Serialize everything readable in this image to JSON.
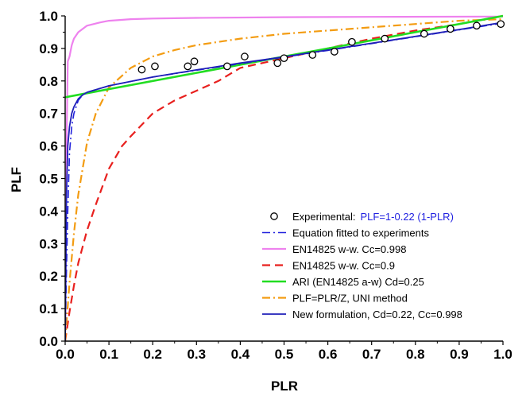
{
  "chart_data": {
    "type": "line",
    "xlabel": "PLR",
    "ylabel": "PLF",
    "xlim": [
      0,
      1
    ],
    "ylim": [
      0,
      1
    ],
    "xticks": [
      "0.0",
      "0.1",
      "0.2",
      "0.3",
      "0.4",
      "0.5",
      "0.6",
      "0.7",
      "0.8",
      "0.9",
      "1.0"
    ],
    "yticks": [
      "0.0",
      "0.1",
      "0.2",
      "0.3",
      "0.4",
      "0.5",
      "0.6",
      "0.7",
      "0.8",
      "0.9",
      "1.0"
    ],
    "grid": false,
    "legend_position": "bottom-right",
    "series": [
      {
        "name": "Experimental:",
        "equation": "PLF=1-0.22 (1-PLR)",
        "equation_color": "#1f1fe0",
        "style": "markers",
        "marker": "open-circle",
        "color": "#000000",
        "points": [
          [
            0.175,
            0.835
          ],
          [
            0.205,
            0.845
          ],
          [
            0.28,
            0.845
          ],
          [
            0.295,
            0.86
          ],
          [
            0.37,
            0.845
          ],
          [
            0.41,
            0.875
          ],
          [
            0.485,
            0.855
          ],
          [
            0.5,
            0.87
          ],
          [
            0.565,
            0.88
          ],
          [
            0.615,
            0.89
          ],
          [
            0.655,
            0.92
          ],
          [
            0.73,
            0.93
          ],
          [
            0.82,
            0.945
          ],
          [
            0.88,
            0.96
          ],
          [
            0.94,
            0.97
          ],
          [
            0.995,
            0.975
          ]
        ]
      },
      {
        "name": "Equation fitted to experiments",
        "style": "dash-dot",
        "color": "#2222dd",
        "width": 1.6,
        "points": [
          [
            0.0,
            0.0
          ],
          [
            0.003,
            0.22
          ],
          [
            0.006,
            0.4
          ],
          [
            0.01,
            0.58
          ],
          [
            0.015,
            0.66
          ],
          [
            0.02,
            0.7
          ],
          [
            0.03,
            0.74
          ],
          [
            0.04,
            0.757
          ],
          [
            0.05,
            0.765
          ],
          [
            0.1,
            0.785
          ],
          [
            0.2,
            0.812
          ],
          [
            0.3,
            0.833
          ],
          [
            0.4,
            0.853
          ],
          [
            0.5,
            0.873
          ],
          [
            0.6,
            0.894
          ],
          [
            0.7,
            0.915
          ],
          [
            0.8,
            0.936
          ],
          [
            0.9,
            0.957
          ],
          [
            1.0,
            0.978
          ]
        ]
      },
      {
        "name": "EN14825 w-w. Cc=0.998",
        "style": "solid",
        "color": "#ee82ee",
        "width": 2.2,
        "points": [
          [
            0.0,
            0.0
          ],
          [
            0.003,
            0.6
          ],
          [
            0.006,
            0.86
          ],
          [
            0.01,
            0.875
          ],
          [
            0.015,
            0.91
          ],
          [
            0.02,
            0.93
          ],
          [
            0.03,
            0.95
          ],
          [
            0.05,
            0.97
          ],
          [
            0.08,
            0.98
          ],
          [
            0.1,
            0.985
          ],
          [
            0.15,
            0.99
          ],
          [
            0.2,
            0.992
          ],
          [
            0.3,
            0.994
          ],
          [
            0.5,
            0.996
          ],
          [
            0.7,
            0.997
          ],
          [
            1.0,
            0.998
          ]
        ]
      },
      {
        "name": "EN14825 w-w. Cc=0.9",
        "style": "dashed",
        "color": "#e8201e",
        "width": 2.2,
        "points": [
          [
            0.0,
            0.0
          ],
          [
            0.01,
            0.09
          ],
          [
            0.02,
            0.17
          ],
          [
            0.03,
            0.24
          ],
          [
            0.05,
            0.34
          ],
          [
            0.07,
            0.42
          ],
          [
            0.1,
            0.53
          ],
          [
            0.13,
            0.6
          ],
          [
            0.15,
            0.63
          ],
          [
            0.2,
            0.7
          ],
          [
            0.25,
            0.74
          ],
          [
            0.3,
            0.77
          ],
          [
            0.35,
            0.8
          ],
          [
            0.4,
            0.84
          ],
          [
            0.5,
            0.87
          ],
          [
            0.6,
            0.9
          ],
          [
            0.7,
            0.93
          ],
          [
            0.8,
            0.955
          ],
          [
            0.9,
            0.975
          ],
          [
            1.0,
            1.0
          ]
        ]
      },
      {
        "name": "ARI (EN14825 a-w) Cd=0.25",
        "style": "solid",
        "color": "#22dd22",
        "width": 2.6,
        "points": [
          [
            0.0,
            0.75
          ],
          [
            1.0,
            1.0
          ]
        ]
      },
      {
        "name": "PLF=PLR/Z, UNI method",
        "style": "dash-dot",
        "color": "#f39c12",
        "width": 2.2,
        "points": [
          [
            0.0,
            0.0
          ],
          [
            0.01,
            0.18
          ],
          [
            0.02,
            0.33
          ],
          [
            0.03,
            0.45
          ],
          [
            0.05,
            0.61
          ],
          [
            0.07,
            0.7
          ],
          [
            0.1,
            0.78
          ],
          [
            0.15,
            0.84
          ],
          [
            0.2,
            0.875
          ],
          [
            0.25,
            0.895
          ],
          [
            0.3,
            0.91
          ],
          [
            0.4,
            0.93
          ],
          [
            0.5,
            0.945
          ],
          [
            0.6,
            0.955
          ],
          [
            0.7,
            0.965
          ],
          [
            0.8,
            0.975
          ],
          [
            0.9,
            0.985
          ],
          [
            1.0,
            0.99
          ]
        ]
      },
      {
        "name": "New formulation, Cd=0.22, Cc=0.998",
        "style": "solid",
        "color": "#1f1fb8",
        "width": 1.8,
        "points": [
          [
            0.0,
            0.0
          ],
          [
            0.003,
            0.45
          ],
          [
            0.006,
            0.6
          ],
          [
            0.01,
            0.66
          ],
          [
            0.015,
            0.7
          ],
          [
            0.02,
            0.72
          ],
          [
            0.03,
            0.745
          ],
          [
            0.04,
            0.757
          ],
          [
            0.05,
            0.765
          ],
          [
            0.1,
            0.785
          ],
          [
            0.2,
            0.812
          ],
          [
            0.3,
            0.834
          ],
          [
            0.4,
            0.855
          ],
          [
            0.5,
            0.874
          ],
          [
            0.6,
            0.895
          ],
          [
            0.7,
            0.916
          ],
          [
            0.8,
            0.937
          ],
          [
            0.9,
            0.958
          ],
          [
            1.0,
            0.98
          ]
        ]
      }
    ]
  }
}
